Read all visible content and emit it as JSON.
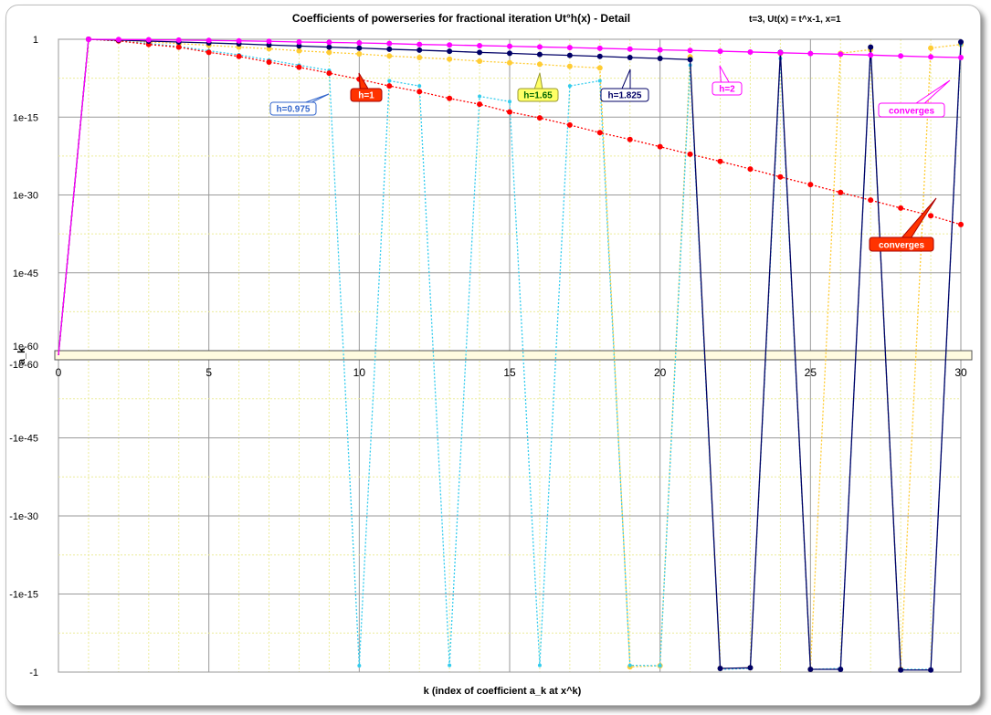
{
  "chart_data": {
    "type": "line",
    "title": "Coefficients of powerseries for fractional iteration Ut°h(x) - Detail",
    "subtitle": "t=3, Ut(x) = t^x-1, x=1",
    "xlabel": "k (index of coefficient a_k at x^k)",
    "ylabel": "a_k",
    "xlim": [
      0,
      30
    ],
    "x_ticks": [
      "0",
      "5",
      "10",
      "15",
      "20",
      "25",
      "30"
    ],
    "y_ticks_upper": [
      "1",
      "1e-15",
      "1e-30",
      "1e-45",
      "1e-60"
    ],
    "y_ticks_lower": [
      "-1e-60",
      "-1e-45",
      "-1e-30",
      "-1e-15",
      "-1"
    ],
    "yscale": "signed-log (separate log scales for positive and negative values)",
    "grid": true,
    "series": [
      {
        "name": "h=1",
        "color": "#ff0000",
        "line_style": "dotted",
        "x": [
          0,
          1,
          2,
          3,
          4,
          5,
          6,
          7,
          8,
          9,
          10,
          11,
          12,
          13,
          14,
          15,
          16,
          17,
          18,
          19,
          20,
          21,
          22,
          23,
          24,
          25,
          26,
          27,
          28,
          29,
          30
        ],
        "y": [
          0,
          1,
          0.5,
          0.1,
          0.03,
          0.003,
          0.0005,
          4e-05,
          4e-06,
          3e-07,
          2e-08,
          1e-09,
          8e-11,
          4e-12,
          3e-13,
          1e-14,
          7e-16,
          3e-17,
          1e-18,
          5e-20,
          2e-21,
          7e-23,
          3e-24,
          1e-25,
          3e-27,
          1e-28,
          3e-30,
          1e-31,
          3e-33,
          1e-34,
          2e-36
        ]
      },
      {
        "name": "h=0.975",
        "color": "#33ccee",
        "line_style": "dotted",
        "x": [
          0,
          1,
          2,
          3,
          4,
          5,
          6,
          7,
          8,
          9,
          10,
          11,
          12,
          13,
          14,
          15,
          16,
          17,
          18,
          19,
          20,
          21,
          22,
          23,
          24,
          25,
          26,
          27,
          28,
          29,
          30
        ],
        "y": [
          0,
          1,
          0.5,
          0.15,
          0.04,
          0.006,
          0.001,
          0.0001,
          1e-05,
          1e-06,
          -0.06,
          1e-08,
          1e-09,
          -0.05,
          1e-11,
          1e-12,
          -0.05,
          1e-09,
          1e-08,
          -0.05,
          -0.06,
          1e-05,
          -0.3,
          -0.2,
          0.0002,
          -0.3,
          -0.2,
          0.02,
          -0.3,
          -0.3,
          0.1
        ]
      },
      {
        "name": "h=1.65",
        "color": "#ffcc33",
        "line_style": "dotted",
        "x": [
          0,
          1,
          2,
          3,
          4,
          5,
          6,
          7,
          8,
          9,
          10,
          11,
          12,
          13,
          14,
          15,
          16,
          17,
          18,
          19,
          20,
          21,
          22,
          23,
          24,
          25,
          26,
          27,
          28,
          29,
          30
        ],
        "y": [
          0,
          1,
          0.6,
          0.3,
          0.15,
          0.07,
          0.03,
          0.015,
          0.006,
          0.003,
          0.0015,
          0.0006,
          0.0003,
          0.00015,
          6e-05,
          3e-05,
          1.5e-05,
          6e-06,
          3e-06,
          -0.1,
          -0.06,
          0.0004,
          -0.2,
          -0.15,
          0.002,
          -0.3,
          0.002,
          0.01,
          -0.3,
          0.02,
          0.1
        ]
      },
      {
        "name": "h=1.825",
        "color": "#000066",
        "line_style": "solid",
        "x": [
          0,
          1,
          2,
          3,
          4,
          5,
          6,
          7,
          8,
          9,
          10,
          11,
          12,
          13,
          14,
          15,
          16,
          17,
          18,
          19,
          20,
          21,
          22,
          23,
          24,
          25,
          26,
          27,
          28,
          29,
          30
        ],
        "y": [
          0,
          1,
          0.7,
          0.45,
          0.3,
          0.2,
          0.13,
          0.08,
          0.05,
          0.03,
          0.02,
          0.012,
          0.008,
          0.005,
          0.003,
          0.002,
          0.0012,
          0.0008,
          0.0005,
          0.0003,
          0.0002,
          0.00012,
          -0.2,
          -0.15,
          0.003,
          -0.3,
          -0.3,
          0.03,
          -0.4,
          -0.4,
          0.3
        ]
      },
      {
        "name": "h=2",
        "color": "#ff00ff",
        "line_style": "solid",
        "x": [
          0,
          1,
          2,
          3,
          4,
          5,
          6,
          7,
          8,
          9,
          10,
          11,
          12,
          13,
          14,
          15,
          16,
          17,
          18,
          19,
          20,
          21,
          22,
          23,
          24,
          25,
          26,
          27,
          28,
          29,
          30
        ],
        "y": [
          0,
          1,
          0.9,
          0.8,
          0.7,
          0.6,
          0.5,
          0.4,
          0.3,
          0.25,
          0.2,
          0.15,
          0.1,
          0.08,
          0.06,
          0.045,
          0.033,
          0.025,
          0.018,
          0.013,
          0.009,
          0.007,
          0.005,
          0.0035,
          0.0025,
          0.0018,
          0.0013,
          0.0009,
          0.0006,
          0.0004,
          0.0003
        ]
      }
    ],
    "annotations": [
      {
        "text": "h=0.975",
        "series": "h=0.975"
      },
      {
        "text": "h=1",
        "series": "h=1"
      },
      {
        "text": "h=1.65",
        "series": "h=1.65"
      },
      {
        "text": "h=1.825",
        "series": "h=1.825"
      },
      {
        "text": "h=2",
        "series": "h=2"
      },
      {
        "text": "converges",
        "series": "h=2"
      },
      {
        "text": "converges",
        "series": "h=1"
      }
    ]
  }
}
